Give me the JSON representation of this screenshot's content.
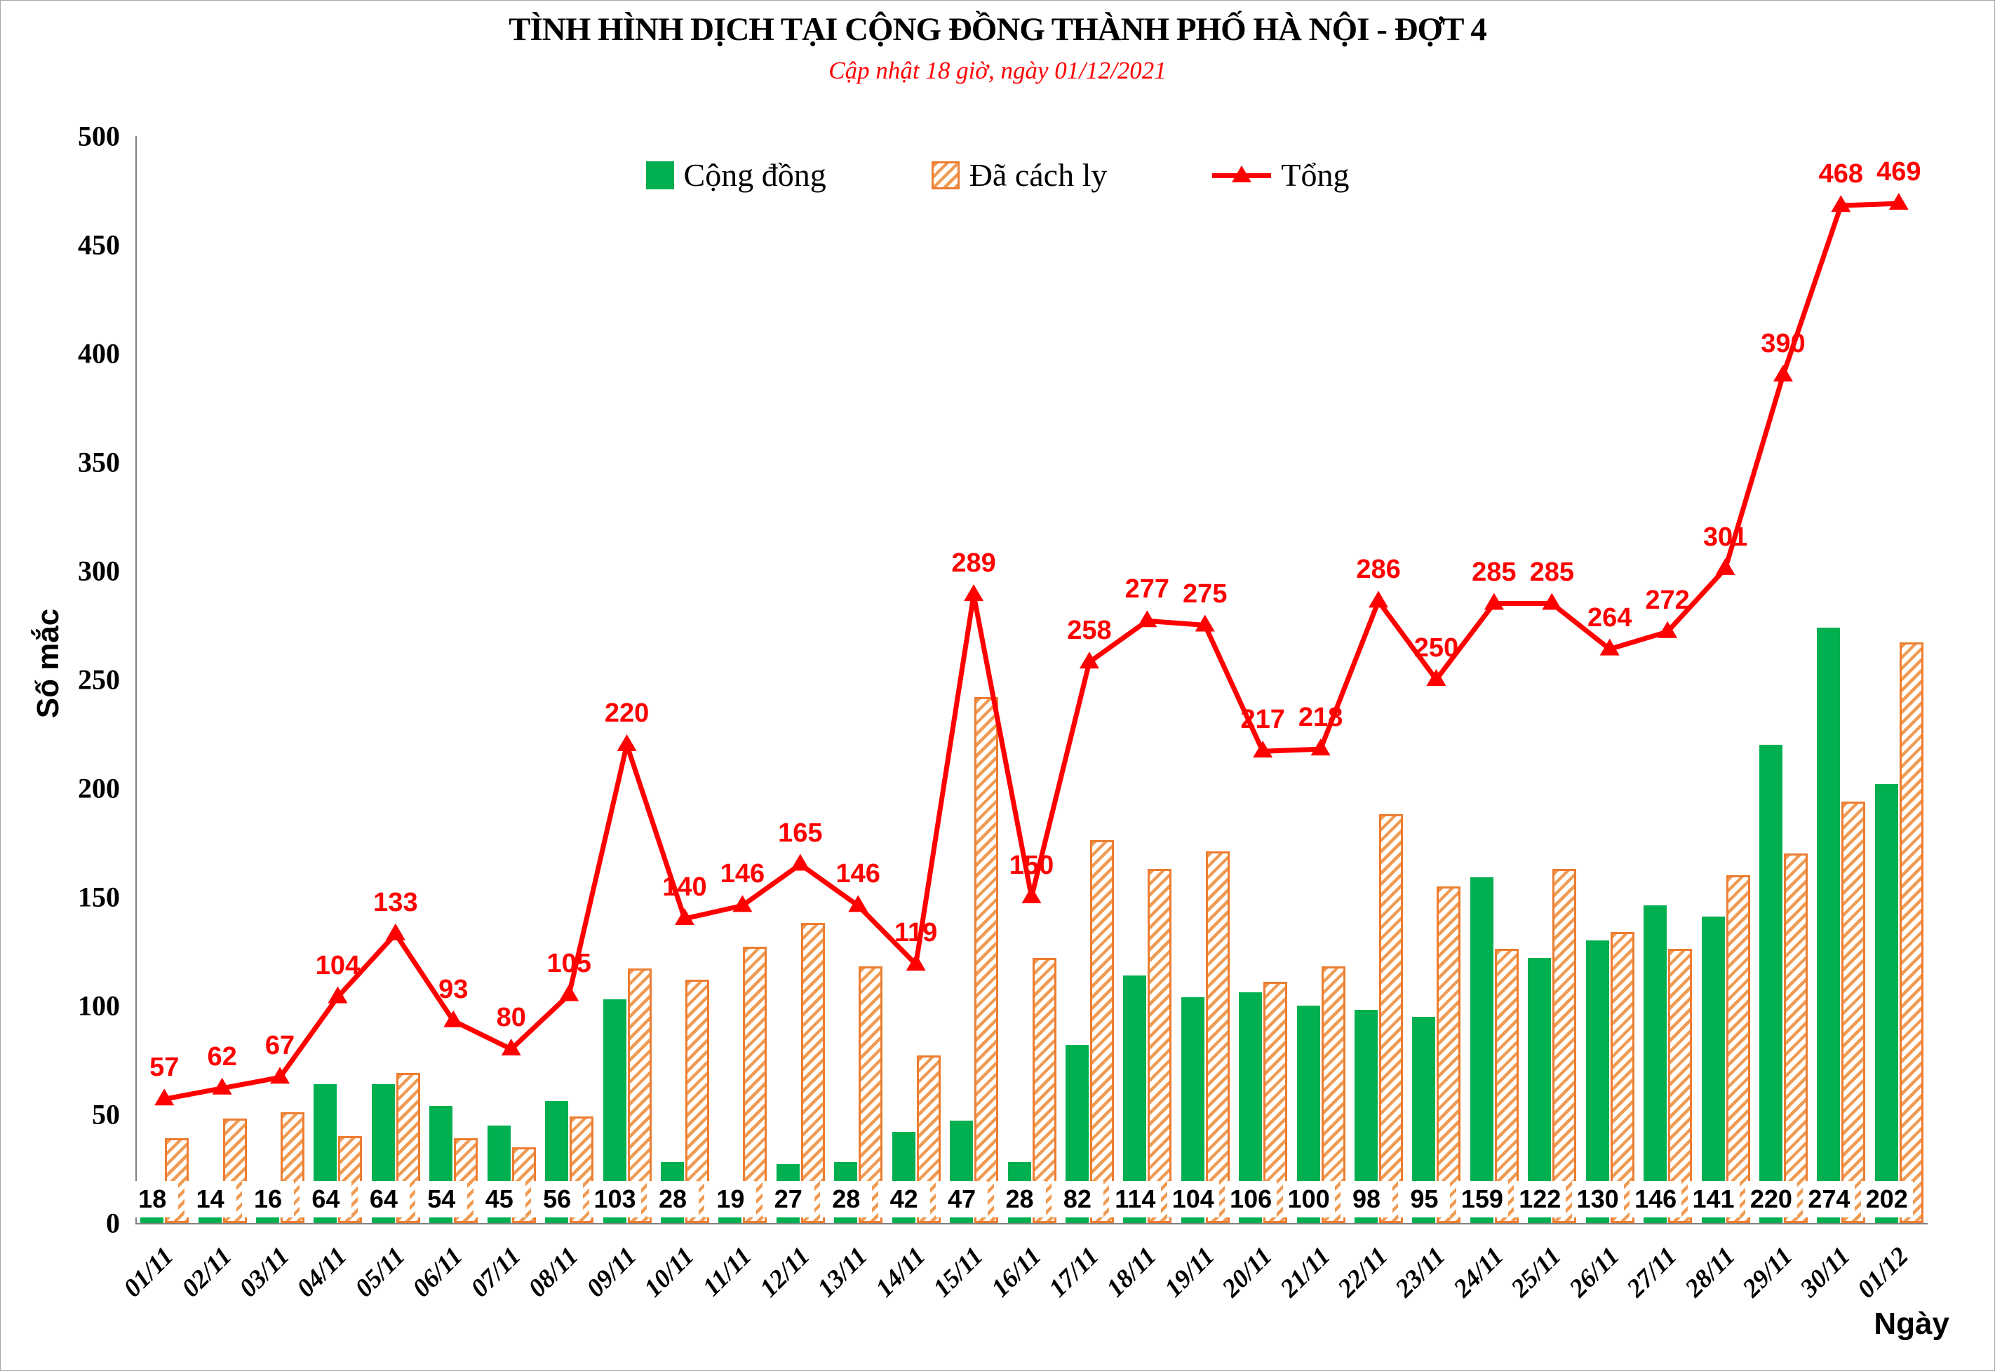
{
  "title": "TÌNH HÌNH DỊCH TẠI CỘNG ĐỒNG THÀNH PHỐ HÀ NỘI - ĐỢT 4",
  "subtitle": "Cập nhật 18 giờ, ngày 01/12/2021",
  "axes": {
    "y_label": "Số mắc",
    "x_label": "Ngày"
  },
  "legend": {
    "items": [
      {
        "label": "Cộng đồng"
      },
      {
        "label": "Đã cách ly"
      },
      {
        "label": "Tổng"
      }
    ]
  },
  "colors": {
    "community_green": "#00B050",
    "quarantine_orange": "#ED7D31",
    "quarantine_stripe": "#F09A52",
    "total_red": "#FF0000",
    "subtitle_red": "#FF0000",
    "axis_gray": "#808080"
  },
  "chart_data": {
    "type": "bar+line",
    "title": "TÌNH HÌNH DỊCH TẠI CỘNG ĐỒNG THÀNH PHỐ HÀ NỘI - ĐỢT 4",
    "subtitle": "Cập nhật 18 giờ, ngày 01/12/2021",
    "xlabel": "Ngày",
    "ylabel": "Số mắc",
    "ylim": [
      0,
      500
    ],
    "ytick_step": 50,
    "grid": false,
    "legend_position": "top-center",
    "categories": [
      "01/11",
      "02/11",
      "03/11",
      "04/11",
      "05/11",
      "06/11",
      "07/11",
      "08/11",
      "09/11",
      "10/11",
      "11/11",
      "12/11",
      "13/11",
      "14/11",
      "15/11",
      "16/11",
      "17/11",
      "18/11",
      "19/11",
      "20/11",
      "21/11",
      "22/11",
      "23/11",
      "24/11",
      "25/11",
      "26/11",
      "27/11",
      "28/11",
      "29/11",
      "30/11",
      "01/12"
    ],
    "series": [
      {
        "name": "Cộng đồng",
        "type": "bar",
        "style": "solid",
        "labels_shown": true,
        "values": [
          18,
          14,
          16,
          64,
          64,
          54,
          45,
          56,
          103,
          28,
          19,
          27,
          28,
          42,
          47,
          28,
          82,
          114,
          104,
          106,
          100,
          98,
          95,
          159,
          122,
          130,
          146,
          141,
          220,
          274,
          202
        ]
      },
      {
        "name": "Đã cách ly",
        "type": "bar",
        "style": "hatched",
        "labels_shown": false,
        "values": [
          39,
          48,
          51,
          40,
          69,
          39,
          35,
          49,
          117,
          112,
          127,
          138,
          118,
          77,
          242,
          122,
          176,
          163,
          171,
          111,
          118,
          188,
          155,
          126,
          163,
          134,
          126,
          160,
          170,
          194,
          267
        ]
      },
      {
        "name": "Tổng",
        "type": "line",
        "marker": "triangle",
        "labels_shown": true,
        "values": [
          57,
          62,
          67,
          104,
          133,
          93,
          80,
          105,
          220,
          140,
          146,
          165,
          146,
          119,
          289,
          150,
          258,
          277,
          275,
          217,
          218,
          286,
          250,
          285,
          285,
          264,
          272,
          301,
          390,
          468,
          469
        ]
      }
    ]
  }
}
